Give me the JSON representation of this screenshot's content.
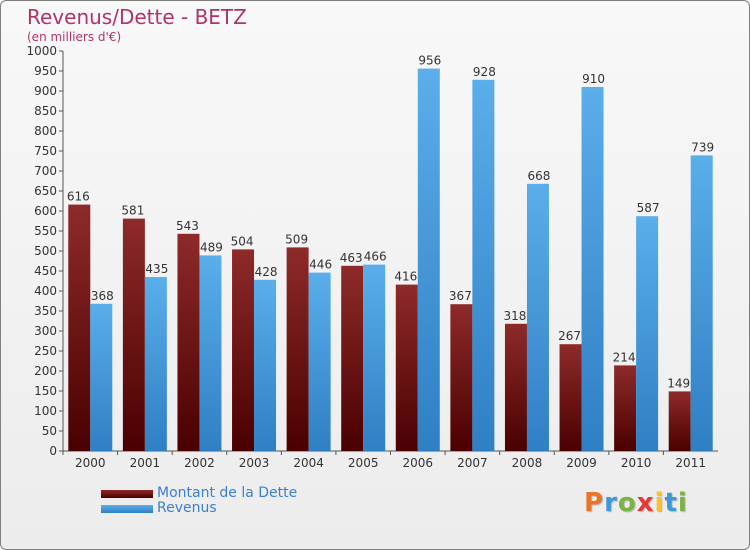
{
  "title": "Revenus/Dette - BETZ",
  "subtitle": "(en milliers d'€)",
  "logo": {
    "text": "Proxiti",
    "letters": [
      {
        "ch": "P",
        "color": "#e8742a"
      },
      {
        "ch": "r",
        "color": "#3a9ad9"
      },
      {
        "ch": "o",
        "color": "#7cb342"
      },
      {
        "ch": "x",
        "color": "#e53935"
      },
      {
        "ch": "i",
        "color": "#fbc02d"
      },
      {
        "ch": "t",
        "color": "#3a9ad9"
      },
      {
        "ch": "i",
        "color": "#7cb342"
      }
    ]
  },
  "chart_data": {
    "type": "bar",
    "title": "Revenus/Dette - BETZ",
    "subtitle": "(en milliers d'€)",
    "categories": [
      "2000",
      "2001",
      "2002",
      "2003",
      "2004",
      "2005",
      "2006",
      "2007",
      "2008",
      "2009",
      "2010",
      "2011"
    ],
    "series": [
      {
        "name": "Montant de la Dette",
        "color": "#7a1a1a",
        "values": [
          616,
          581,
          543,
          504,
          509,
          463,
          416,
          367,
          318,
          267,
          214,
          149
        ]
      },
      {
        "name": "Revenus",
        "color": "#4fa3e0",
        "values": [
          368,
          435,
          489,
          428,
          446,
          466,
          956,
          928,
          668,
          910,
          587,
          739
        ]
      }
    ],
    "ylim": [
      0,
      1000
    ],
    "yticks": [
      0,
      50,
      100,
      150,
      200,
      250,
      300,
      350,
      400,
      450,
      500,
      550,
      600,
      650,
      700,
      750,
      800,
      850,
      900,
      950,
      1000
    ],
    "grid": false,
    "legend": "bottom-left"
  }
}
